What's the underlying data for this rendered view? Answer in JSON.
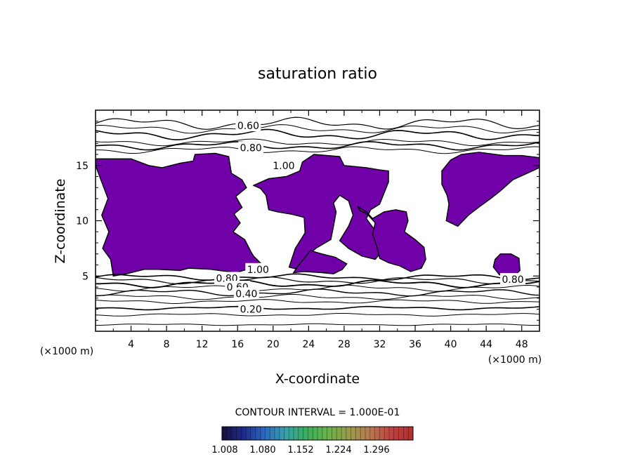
{
  "chart_data": {
    "type": "contour",
    "title": "saturation ratio",
    "xlabel": "X-coordinate",
    "ylabel": "Z-coordinate",
    "x_unit_note": "(×1000 m)",
    "y_unit_note": "(×1000 m)",
    "xlim": [
      0,
      50
    ],
    "ylim": [
      0,
      20
    ],
    "x_ticks": [
      4,
      8,
      12,
      16,
      20,
      24,
      28,
      32,
      36,
      40,
      44,
      48
    ],
    "y_ticks": [
      5,
      10,
      15
    ],
    "contour_interval_text": "CONTOUR INTERVAL = 1.000E-01",
    "contour_labels": [
      {
        "text": "0.60",
        "x": 17.2,
        "z": 18.6
      },
      {
        "text": "0.80",
        "x": 17.5,
        "z": 16.6
      },
      {
        "text": "1.00",
        "x": 21.2,
        "z": 15.0
      },
      {
        "text": "1.00",
        "x": 18.3,
        "z": 5.6
      },
      {
        "text": "0.80",
        "x": 14.8,
        "z": 4.8
      },
      {
        "text": "0.60",
        "x": 16.0,
        "z": 4.0
      },
      {
        "text": "0.40",
        "x": 17.0,
        "z": 3.4
      },
      {
        "text": "0.20",
        "x": 17.5,
        "z": 2.0
      },
      {
        "text": "0.80",
        "x": 47.0,
        "z": 4.7
      }
    ],
    "supersaturated_regions": [
      [
        [
          0,
          15.6
        ],
        [
          4,
          15.6
        ],
        [
          6,
          15.0
        ],
        [
          7.5,
          14.8
        ],
        [
          9.5,
          15.2
        ],
        [
          11,
          15.4
        ],
        [
          11.2,
          16.0
        ],
        [
          13.5,
          16.1
        ],
        [
          15,
          15.8
        ],
        [
          15.3,
          14.3
        ],
        [
          16.5,
          13.7
        ],
        [
          17,
          13.0
        ],
        [
          15.8,
          12.2
        ],
        [
          16.5,
          11.2
        ],
        [
          15.6,
          10.6
        ],
        [
          16.3,
          9.8
        ],
        [
          15.5,
          9.0
        ],
        [
          16.8,
          8.3
        ],
        [
          17.5,
          7.2
        ],
        [
          17.8,
          6.8
        ],
        [
          18.8,
          6.0
        ],
        [
          15.8,
          5.3
        ],
        [
          13.0,
          5.6
        ],
        [
          10.5,
          5.7
        ],
        [
          9.5,
          5.5
        ],
        [
          7.0,
          5.6
        ],
        [
          5.5,
          5.6
        ],
        [
          3.5,
          5.2
        ],
        [
          2.0,
          5.0
        ],
        [
          1.7,
          6.5
        ],
        [
          0.8,
          7.5
        ],
        [
          1.5,
          9.0
        ],
        [
          0.7,
          10.5
        ],
        [
          1.4,
          12.0
        ],
        [
          0.7,
          13.5
        ],
        [
          0,
          15.0
        ]
      ],
      [
        [
          17.8,
          13.2
        ],
        [
          19.5,
          13.8
        ],
        [
          21.5,
          14.0
        ],
        [
          23,
          14.5
        ],
        [
          23.3,
          15.3
        ],
        [
          24.6,
          16.0
        ],
        [
          27.5,
          15.8
        ],
        [
          28.0,
          15.0
        ],
        [
          30.5,
          14.8
        ],
        [
          32.0,
          14.6
        ],
        [
          33.0,
          14.5
        ],
        [
          33.0,
          13.5
        ],
        [
          32.5,
          12.5
        ],
        [
          32.0,
          11.5
        ],
        [
          31.0,
          11.0
        ],
        [
          30.5,
          10.2
        ],
        [
          31.6,
          9.0
        ],
        [
          31.6,
          8.2
        ],
        [
          32.0,
          7.0
        ],
        [
          31.5,
          6.5
        ],
        [
          30.0,
          6.8
        ],
        [
          28.5,
          7.5
        ],
        [
          27.5,
          8.2
        ],
        [
          28.5,
          9.5
        ],
        [
          29.0,
          10.5
        ],
        [
          28.5,
          11.8
        ],
        [
          27.5,
          12.3
        ],
        [
          26.8,
          11.6
        ],
        [
          27.1,
          10.8
        ],
        [
          26.8,
          9.5
        ],
        [
          26.5,
          8.3
        ],
        [
          24.8,
          7.5
        ],
        [
          23.5,
          6.5
        ],
        [
          22.8,
          5.6
        ],
        [
          21.8,
          5.8
        ],
        [
          22.5,
          7.5
        ],
        [
          23.6,
          8.9
        ],
        [
          23.5,
          10.3
        ],
        [
          22.0,
          10.6
        ],
        [
          20.5,
          10.8
        ],
        [
          19.5,
          11.0
        ],
        [
          19.2,
          12.3
        ],
        [
          18.6,
          12.9
        ]
      ],
      [
        [
          22.3,
          5.3
        ],
        [
          23.5,
          5.4
        ],
        [
          25.5,
          5.3
        ],
        [
          26.8,
          5.2
        ],
        [
          27.8,
          5.6
        ],
        [
          28.3,
          6.1
        ],
        [
          27.0,
          6.7
        ],
        [
          25.5,
          7.0
        ],
        [
          24.2,
          7.3
        ],
        [
          23.4,
          6.5
        ],
        [
          22.8,
          5.9
        ]
      ],
      [
        [
          29.5,
          11.3
        ],
        [
          30.5,
          10.8
        ],
        [
          31.2,
          10.2
        ],
        [
          32.5,
          10.8
        ],
        [
          33.8,
          11.0
        ],
        [
          35.0,
          10.8
        ],
        [
          35.2,
          10.0
        ],
        [
          34.8,
          9.0
        ],
        [
          36.0,
          8.3
        ],
        [
          37.0,
          7.6
        ],
        [
          37.2,
          6.5
        ],
        [
          36.7,
          5.7
        ],
        [
          35.5,
          5.4
        ],
        [
          34.3,
          5.9
        ],
        [
          33.0,
          6.2
        ],
        [
          32.0,
          6.6
        ],
        [
          31.7,
          7.6
        ],
        [
          31.2,
          8.8
        ],
        [
          31.5,
          9.8
        ],
        [
          30.6,
          10.6
        ],
        [
          29.8,
          10.9
        ]
      ],
      [
        [
          39.0,
          14.5
        ],
        [
          40.0,
          15.5
        ],
        [
          41.2,
          16.0
        ],
        [
          43.2,
          16.2
        ],
        [
          46.0,
          15.9
        ],
        [
          48.0,
          15.9
        ],
        [
          50.0,
          15.7
        ],
        [
          50.0,
          14.8
        ],
        [
          47.0,
          13.7
        ],
        [
          45.6,
          12.7
        ],
        [
          44.5,
          12.0
        ],
        [
          43.3,
          11.3
        ],
        [
          42.0,
          10.5
        ],
        [
          40.8,
          9.5
        ],
        [
          39.5,
          10.0
        ],
        [
          39.8,
          11.5
        ],
        [
          39.6,
          12.3
        ],
        [
          39.0,
          13.3
        ]
      ],
      [
        [
          44.8,
          5.8
        ],
        [
          45.5,
          5.1
        ],
        [
          47.3,
          5.1
        ],
        [
          47.8,
          5.5
        ],
        [
          47.7,
          6.6
        ],
        [
          46.8,
          7.0
        ],
        [
          45.6,
          7.0
        ],
        [
          45.0,
          6.5
        ]
      ]
    ],
    "colorbar": {
      "ticks": [
        "1.008",
        "1.080",
        "1.152",
        "1.224",
        "1.296"
      ],
      "colors": [
        "#1a0f3c",
        "#1e2a8a",
        "#2a6ac0",
        "#3aa0a8",
        "#3aaf5a",
        "#6ab34a",
        "#9a9a48",
        "#b87850",
        "#c04040",
        "#b03030"
      ]
    },
    "fill_color": "#7000a8"
  }
}
